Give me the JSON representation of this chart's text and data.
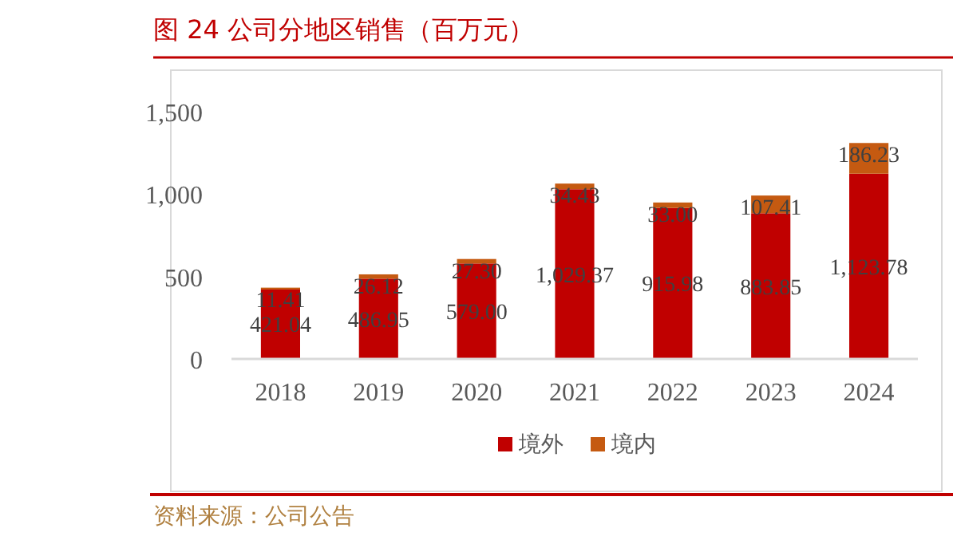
{
  "chart_data": {
    "type": "bar",
    "title": "图 24 公司分地区销售（百万元）",
    "stacked": true,
    "categories": [
      "2018",
      "2019",
      "2020",
      "2021",
      "2022",
      "2023",
      "2024"
    ],
    "series": [
      {
        "name": "境外",
        "color": "#c00000",
        "values": [
          421.04,
          486.95,
          579.0,
          1029.37,
          915.98,
          883.85,
          1123.78
        ],
        "value_labels": [
          "421.04",
          "486.95",
          "579.00",
          "1,029.37",
          "915.98",
          "883.85",
          "1,123.78"
        ]
      },
      {
        "name": "境内",
        "color": "#c55a11",
        "values": [
          11.41,
          26.12,
          27.3,
          34.43,
          33.0,
          107.41,
          186.23
        ],
        "value_labels": [
          "11.41",
          "26.12",
          "27.30",
          "34.43",
          "33.00",
          "107.41",
          "186.23"
        ]
      }
    ],
    "ylim": [
      0,
      1500
    ],
    "yticks": [
      0,
      {
        "value": 500,
        "label": "500"
      },
      {
        "value": 1000,
        "label": "1,000"
      },
      {
        "value": 1500,
        "label": "1,500"
      }
    ],
    "legend": "bottom",
    "grid": false,
    "annotations": [
      "资料来源：公司公告"
    ]
  }
}
